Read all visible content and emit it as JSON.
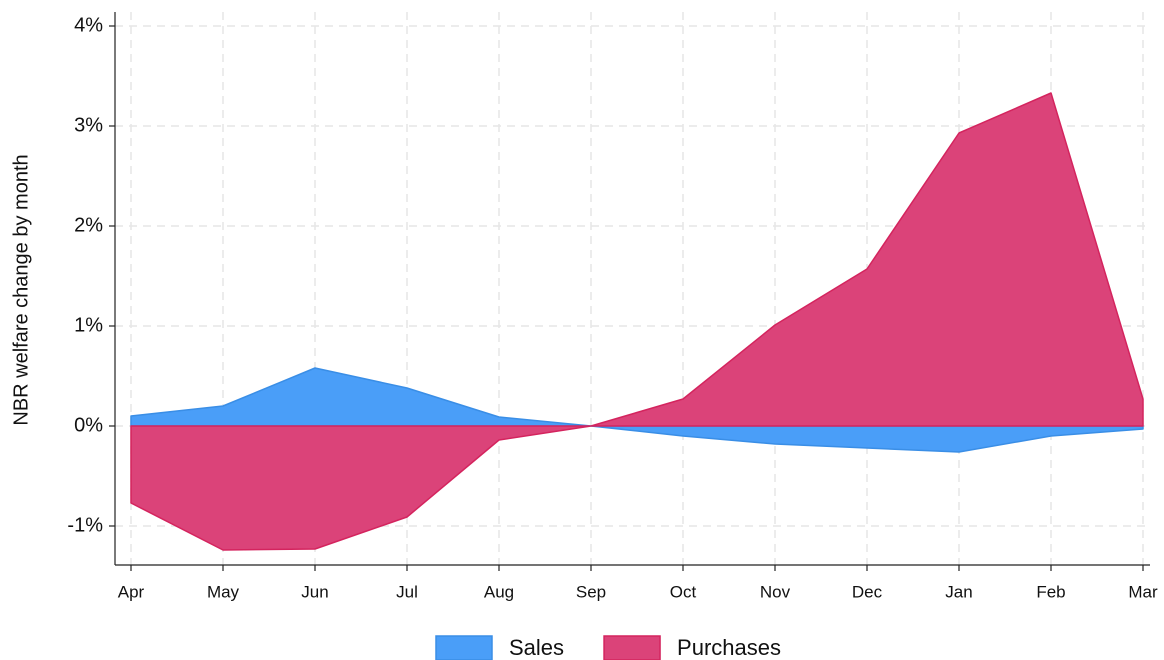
{
  "chart_data": {
    "type": "area",
    "y_label": "NBR welfare change by month",
    "categories": [
      "Apr",
      "May",
      "Jun",
      "Jul",
      "Aug",
      "Sep",
      "Oct",
      "Nov",
      "Dec",
      "Jan",
      "Feb",
      "Mar"
    ],
    "series": [
      {
        "name": "Sales",
        "color": "#4a9ef8",
        "values": [
          0.1,
          0.2,
          0.58,
          0.38,
          0.09,
          0,
          -0.1,
          -0.18,
          -0.22,
          -0.26,
          -0.1,
          -0.03
        ]
      },
      {
        "name": "Purchases",
        "color": "#db4379",
        "values": [
          -0.77,
          -1.24,
          -1.23,
          -0.91,
          -0.14,
          0,
          0.27,
          1.01,
          1.57,
          2.93,
          3.33,
          0.27
        ]
      }
    ],
    "ylim": [
      -1.39,
      4.14
    ],
    "yticks": [
      {
        "value": -1,
        "label": "-1%"
      },
      {
        "value": 0,
        "label": "0%"
      },
      {
        "value": 1,
        "label": "1%"
      },
      {
        "value": 2,
        "label": "2%"
      },
      {
        "value": 3,
        "label": "3%"
      },
      {
        "value": 4,
        "label": "4%"
      }
    ],
    "grid": true,
    "legend": "bottom"
  }
}
